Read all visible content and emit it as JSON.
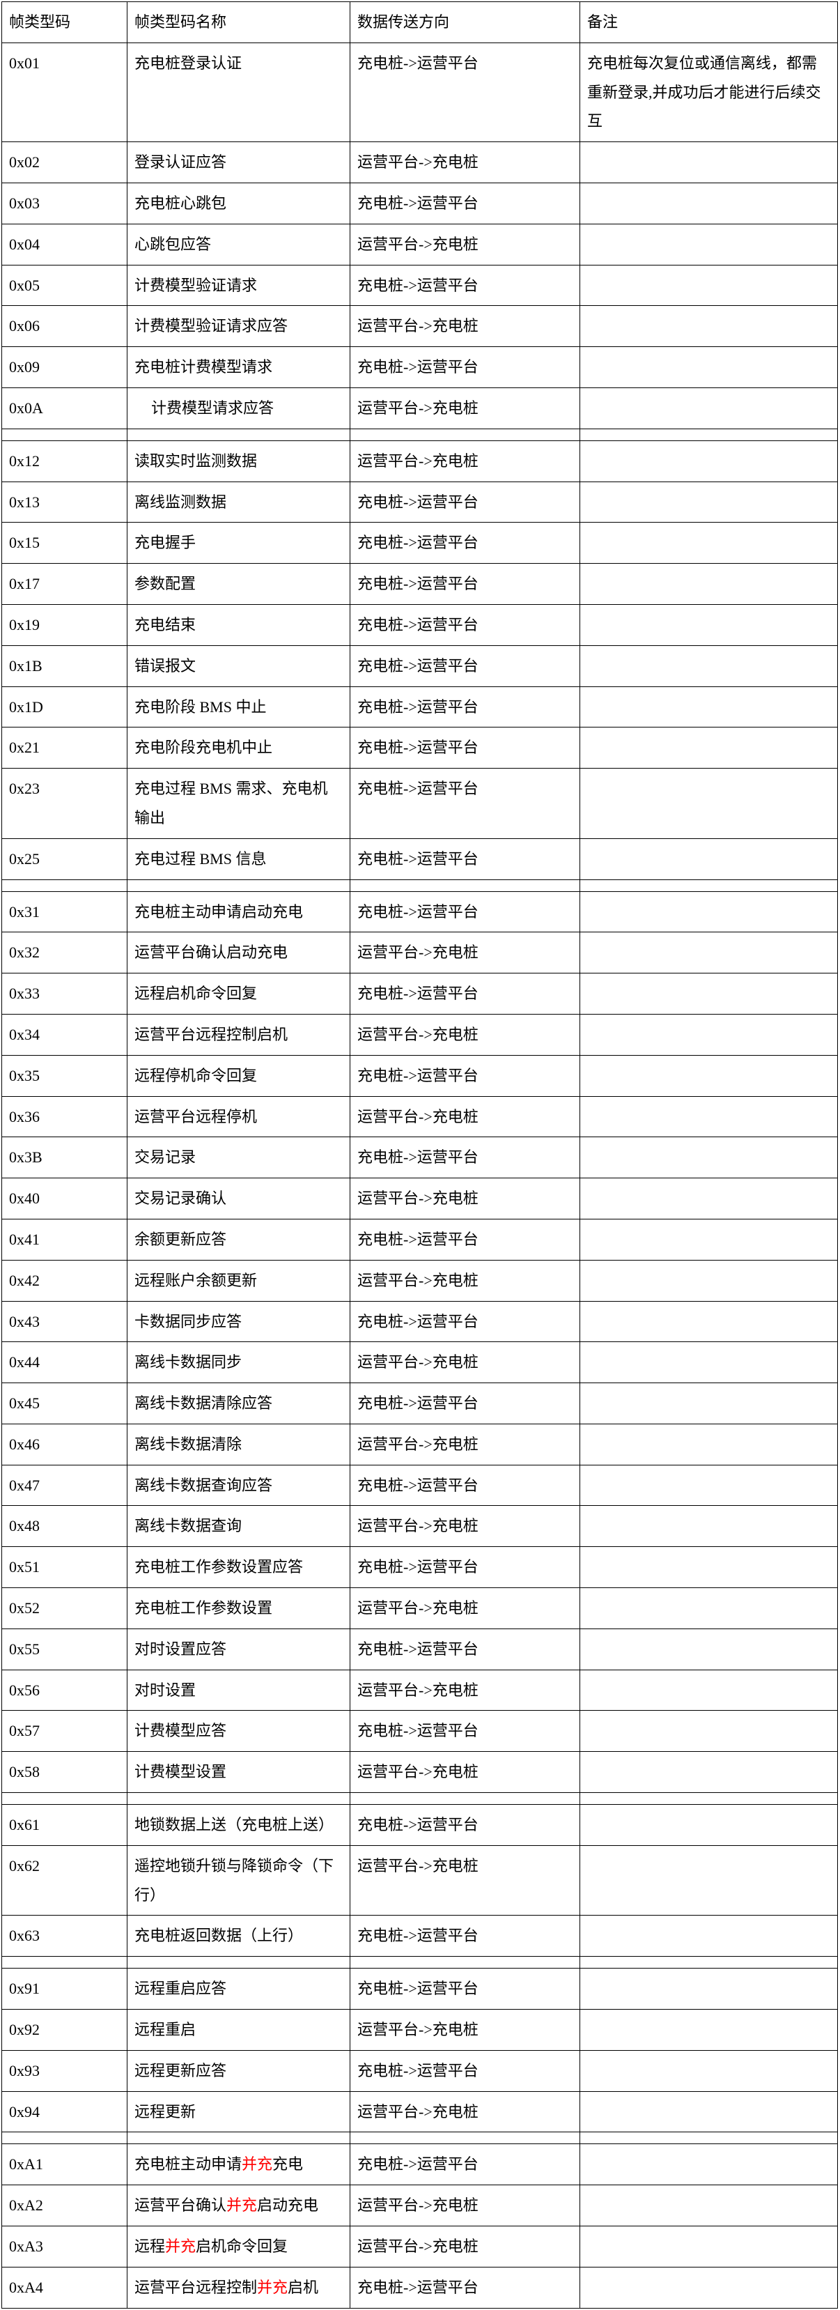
{
  "headers": [
    "帧类型码",
    "帧类型码名称",
    "数据传送方向",
    "备注"
  ],
  "dir": {
    "up": "充电桩->运营平台",
    "down": "运营平台->充电桩"
  },
  "rows": [
    {
      "code": "0x01",
      "name": "充电桩登录认证",
      "dirKey": "up",
      "remark": "充电桩每次复位或通信离线，都需重新登录,并成功后才能进行后续交互"
    },
    {
      "code": "0x02",
      "name": "登录认证应答",
      "dirKey": "down",
      "remark": ""
    },
    {
      "code": "0x03",
      "name": "充电桩心跳包",
      "dirKey": "up",
      "remark": ""
    },
    {
      "code": "0x04",
      "name": "心跳包应答",
      "dirKey": "down",
      "remark": ""
    },
    {
      "code": "0x05",
      "name": "计费模型验证请求",
      "dirKey": "up",
      "remark": ""
    },
    {
      "code": "0x06",
      "name": "计费模型验证请求应答",
      "dirKey": "down",
      "remark": ""
    },
    {
      "code": "0x09",
      "name": "充电桩计费模型请求",
      "dirKey": "up",
      "remark": ""
    },
    {
      "code": "0x0A",
      "name": "计费模型请求应答",
      "dirKey": "down",
      "remark": "",
      "indent": true
    },
    {
      "sep": true
    },
    {
      "code": "0x12",
      "name": "读取实时监测数据",
      "dirKey": "down",
      "remark": ""
    },
    {
      "code": "0x13",
      "name": "离线监测数据",
      "dirKey": "up",
      "remark": ""
    },
    {
      "code": "0x15",
      "name": "充电握手",
      "dirKey": "up",
      "remark": ""
    },
    {
      "code": "0x17",
      "name": "参数配置",
      "dirKey": "up",
      "remark": ""
    },
    {
      "code": "0x19",
      "name": "充电结束",
      "dirKey": "up",
      "remark": ""
    },
    {
      "code": "0x1B",
      "name": "错误报文",
      "dirKey": "up",
      "remark": ""
    },
    {
      "code": "0x1D",
      "name": "充电阶段 BMS 中止",
      "dirKey": "up",
      "remark": ""
    },
    {
      "code": "0x21",
      "name": "充电阶段充电机中止",
      "dirKey": "up",
      "remark": ""
    },
    {
      "code": "0x23",
      "name": "充电过程 BMS 需求、充电机输出",
      "dirKey": "up",
      "remark": ""
    },
    {
      "code": "0x25",
      "name": "充电过程 BMS 信息",
      "dirKey": "up",
      "remark": ""
    },
    {
      "sep": true
    },
    {
      "code": "0x31",
      "name": "充电桩主动申请启动充电",
      "dirKey": "up",
      "remark": ""
    },
    {
      "code": "0x32",
      "name": "运营平台确认启动充电",
      "dirKey": "down",
      "remark": ""
    },
    {
      "code": "0x33",
      "name": "远程启机命令回复",
      "dirKey": "up",
      "remark": ""
    },
    {
      "code": "0x34",
      "name": "运营平台远程控制启机",
      "dirKey": "down",
      "remark": ""
    },
    {
      "code": "0x35",
      "name": "远程停机命令回复",
      "dirKey": "up",
      "remark": ""
    },
    {
      "code": "0x36",
      "name": "运营平台远程停机",
      "dirKey": "down",
      "remark": ""
    },
    {
      "code": "0x3B",
      "name": "交易记录",
      "dirKey": "up",
      "remark": ""
    },
    {
      "code": "0x40",
      "name": "交易记录确认",
      "dirKey": "down",
      "remark": ""
    },
    {
      "code": "0x41",
      "name": "余额更新应答",
      "dirKey": "up",
      "remark": ""
    },
    {
      "code": "0x42",
      "name": "远程账户余额更新",
      "dirKey": "down",
      "remark": ""
    },
    {
      "code": "0x43",
      "name": "卡数据同步应答",
      "dirKey": "up",
      "remark": ""
    },
    {
      "code": "0x44",
      "name": "离线卡数据同步",
      "dirKey": "down",
      "remark": ""
    },
    {
      "code": "0x45",
      "name": "离线卡数据清除应答",
      "dirKey": "up",
      "remark": ""
    },
    {
      "code": "0x46",
      "name": "离线卡数据清除",
      "dirKey": "down",
      "remark": ""
    },
    {
      "code": "0x47",
      "name": "离线卡数据查询应答",
      "dirKey": "up",
      "remark": ""
    },
    {
      "code": "0x48",
      "name": "离线卡数据查询",
      "dirKey": "down",
      "remark": ""
    },
    {
      "code": "0x51",
      "name": "充电桩工作参数设置应答",
      "dirKey": "up",
      "remark": ""
    },
    {
      "code": "0x52",
      "name": "充电桩工作参数设置",
      "dirKey": "down",
      "remark": ""
    },
    {
      "code": "0x55",
      "name": "对时设置应答",
      "dirKey": "up",
      "remark": ""
    },
    {
      "code": "0x56",
      "name": "对时设置",
      "dirKey": "down",
      "remark": ""
    },
    {
      "code": "0x57",
      "name": "计费模型应答",
      "dirKey": "up",
      "remark": ""
    },
    {
      "code": "0x58",
      "name": "计费模型设置",
      "dirKey": "down",
      "remark": ""
    },
    {
      "sep": true
    },
    {
      "code": "0x61",
      "name": "地锁数据上送（充电桩上送）",
      "dirKey": "up",
      "remark": ""
    },
    {
      "code": "0x62",
      "name": "遥控地锁升锁与降锁命令（下行）",
      "dirKey": "down",
      "remark": ""
    },
    {
      "code": "0x63",
      "name": "充电桩返回数据（上行）",
      "dirKey": "up",
      "remark": ""
    },
    {
      "sep": true
    },
    {
      "code": "0x91",
      "name": "远程重启应答",
      "dirKey": "up",
      "remark": ""
    },
    {
      "code": "0x92",
      "name": "远程重启",
      "dirKey": "down",
      "remark": ""
    },
    {
      "code": "0x93",
      "name": "远程更新应答",
      "dirKey": "up",
      "remark": ""
    },
    {
      "code": "0x94",
      "name": "远程更新",
      "dirKey": "down",
      "remark": ""
    },
    {
      "sep": true
    },
    {
      "code": "0xA1",
      "nameParts": [
        "充电桩主动申请",
        "并充",
        "充电"
      ],
      "dirKey": "up",
      "remark": ""
    },
    {
      "code": "0xA2",
      "nameParts": [
        "运营平台确认",
        "并充",
        "启动充电"
      ],
      "dirKey": "down",
      "remark": ""
    },
    {
      "code": "0xA3",
      "nameParts": [
        "远程",
        "并充",
        "启机命令回复"
      ],
      "dirKey": "down",
      "remark": ""
    },
    {
      "code": "0xA4",
      "nameParts": [
        "运营平台远程控制",
        "并充",
        "启机"
      ],
      "dirKey": "up",
      "remark": ""
    }
  ]
}
